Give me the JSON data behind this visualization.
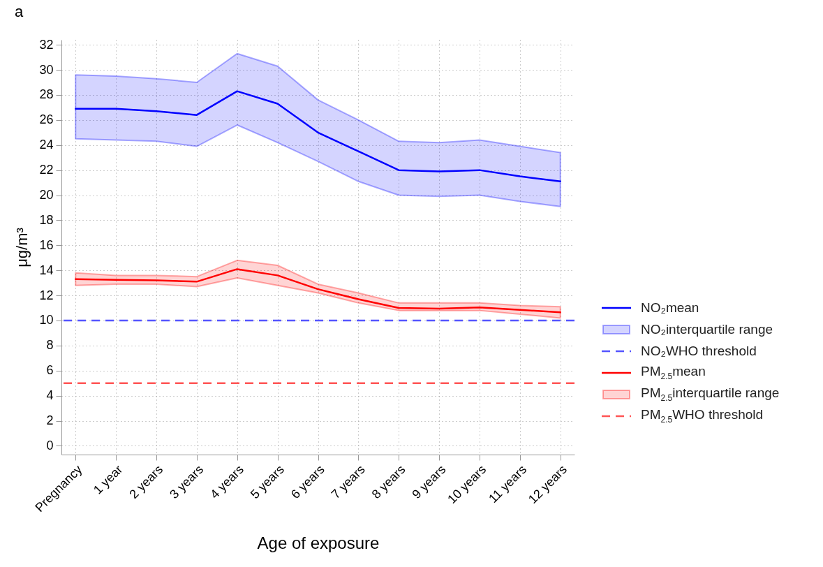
{
  "chart_data": {
    "type": "line",
    "title": "a",
    "xlabel": "Age of exposure",
    "ylabel": "μg/m³",
    "categories": [
      "Pregnancy",
      "1 year",
      "2 years",
      "3 years",
      "4 years",
      "5 years",
      "6 years",
      "7 years",
      "8 years",
      "9 years",
      "10 years",
      "11 years",
      "12 years"
    ],
    "series": [
      {
        "name": "NO₂mean",
        "color": "#0000ff",
        "values": [
          26.9,
          26.9,
          26.7,
          26.4,
          28.3,
          27.3,
          25.0,
          23.5,
          22.0,
          21.9,
          22.0,
          21.5,
          21.1
        ],
        "lower": [
          24.5,
          24.4,
          24.3,
          23.9,
          25.6,
          24.2,
          22.7,
          21.1,
          20.0,
          19.9,
          20.0,
          19.5,
          19.1
        ],
        "upper": [
          29.6,
          29.5,
          29.3,
          29.0,
          31.3,
          30.3,
          27.6,
          26.0,
          24.3,
          24.2,
          24.4,
          23.9,
          23.4
        ]
      },
      {
        "name": "PM$_{2.5}$mean",
        "color": "#ff0000",
        "values": [
          13.3,
          13.25,
          13.2,
          13.1,
          14.1,
          13.6,
          12.5,
          11.7,
          11.0,
          10.95,
          11.05,
          10.85,
          10.65
        ],
        "lower": [
          12.8,
          12.9,
          12.9,
          12.7,
          13.4,
          12.8,
          12.2,
          11.4,
          10.8,
          10.8,
          10.8,
          10.5,
          10.2
        ],
        "upper": [
          13.8,
          13.6,
          13.6,
          13.5,
          14.8,
          14.4,
          12.9,
          12.2,
          11.4,
          11.4,
          11.4,
          11.2,
          11.1
        ]
      }
    ],
    "annotations": [
      "NO₂interquartile range",
      "PM$_{2.5}$interquartile range"
    ],
    "ref_lines": [
      {
        "axis": "y",
        "value": 10,
        "label": "NO₂WHO threshold",
        "color": "#5555ff",
        "line_style": "dashed"
      },
      {
        "axis": "y",
        "value": 5,
        "label": "PM$_{2.5}$WHO threshold",
        "color": "#ff5555",
        "line_style": "dashed"
      }
    ],
    "ylim": [
      -0.7,
      32.4
    ],
    "yticks": [
      0,
      2,
      4,
      6,
      8,
      10,
      12,
      14,
      16,
      18,
      20,
      22,
      24,
      26,
      28,
      30,
      32
    ],
    "grid": true,
    "legend": "right",
    "line_style": "solid",
    "marker": "none"
  }
}
